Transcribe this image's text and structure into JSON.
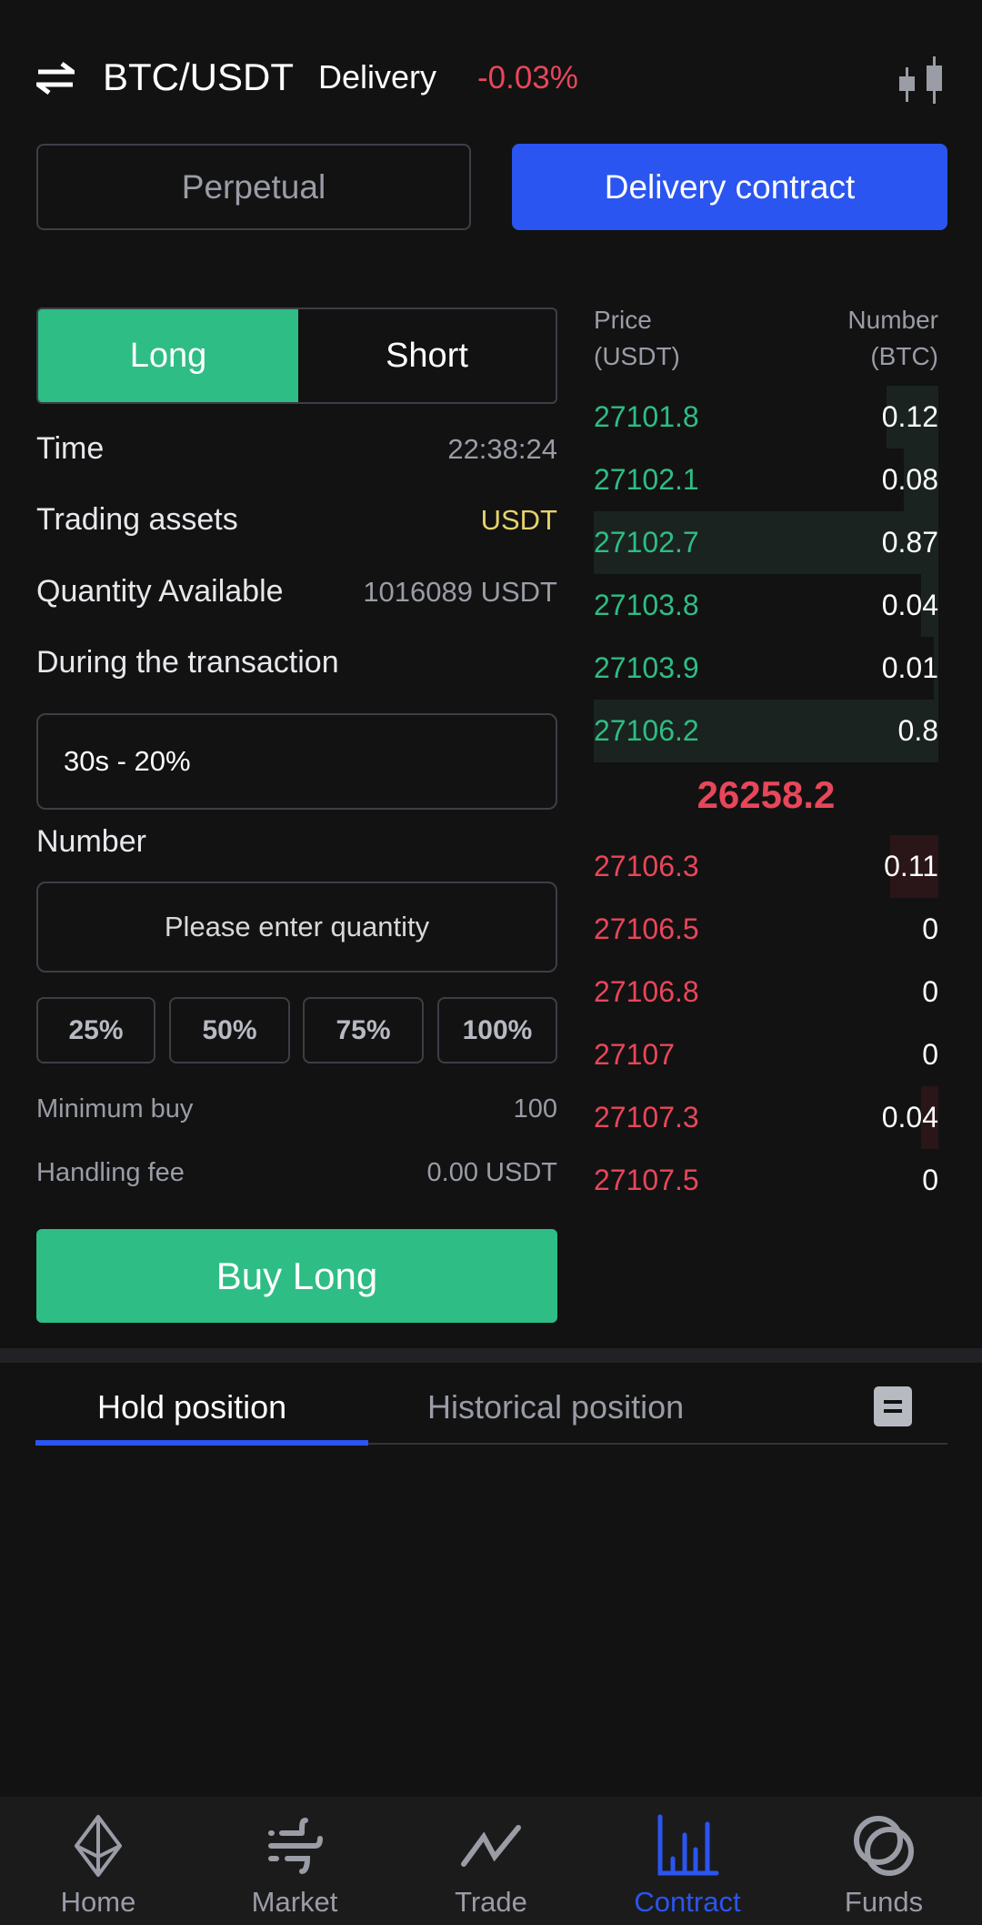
{
  "header": {
    "pair": "BTC/USDT",
    "type": "Delivery",
    "change": "-0.03%"
  },
  "contract_tabs": {
    "perpetual": "Perpetual",
    "delivery": "Delivery contract",
    "active": "delivery"
  },
  "side": {
    "long": "Long",
    "short": "Short",
    "active": "long"
  },
  "info": {
    "time_label": "Time",
    "time_value": "22:38:24",
    "assets_label": "Trading assets",
    "assets_value": "USDT",
    "available_label": "Quantity Available",
    "available_value": "1016089 USDT",
    "during_label": "During the transaction",
    "during_value": "30s - 20%",
    "number_label": "Number",
    "number_placeholder": "Please enter quantity",
    "percents": [
      "25%",
      "50%",
      "75%",
      "100%"
    ],
    "min_label": "Minimum buy",
    "min_value": "100",
    "fee_label": "Handling fee",
    "fee_value": "0.00 USDT"
  },
  "buy_button": "Buy Long",
  "orderbook": {
    "price_header": "Price",
    "price_unit": "(USDT)",
    "number_header": "Number",
    "number_unit": "(BTC)",
    "bids": [
      {
        "price": "27101.8",
        "qty": "0.12",
        "depth": 0.15
      },
      {
        "price": "27102.1",
        "qty": "0.08",
        "depth": 0.1
      },
      {
        "price": "27102.7",
        "qty": "0.87",
        "depth": 1.0
      },
      {
        "price": "27103.8",
        "qty": "0.04",
        "depth": 0.05
      },
      {
        "price": "27103.9",
        "qty": "0.01",
        "depth": 0.013
      },
      {
        "price": "27106.2",
        "qty": "0.8",
        "depth": 1.0
      }
    ],
    "last_price": "26258.2",
    "asks": [
      {
        "price": "27106.3",
        "qty": "0.11",
        "depth": 0.14
      },
      {
        "price": "27106.5",
        "qty": "0",
        "depth": 0
      },
      {
        "price": "27106.8",
        "qty": "0",
        "depth": 0
      },
      {
        "price": "27107",
        "qty": "0",
        "depth": 0
      },
      {
        "price": "27107.3",
        "qty": "0.04",
        "depth": 0.05
      },
      {
        "price": "27107.5",
        "qty": "0",
        "depth": 0
      }
    ]
  },
  "position_tabs": {
    "hold": "Hold position",
    "history": "Historical position"
  },
  "nav": [
    {
      "label": "Home",
      "icon": "ethereum-icon"
    },
    {
      "label": "Market",
      "icon": "wind-icon"
    },
    {
      "label": "Trade",
      "icon": "trend-icon"
    },
    {
      "label": "Contract",
      "icon": "bar-chart-icon",
      "active": true
    },
    {
      "label": "Funds",
      "icon": "rings-icon"
    }
  ],
  "colors": {
    "green": "#2ebd85",
    "red": "#e8465a",
    "blue": "#2a55f0",
    "yellow": "#e6d36a",
    "bg": "#121212"
  }
}
